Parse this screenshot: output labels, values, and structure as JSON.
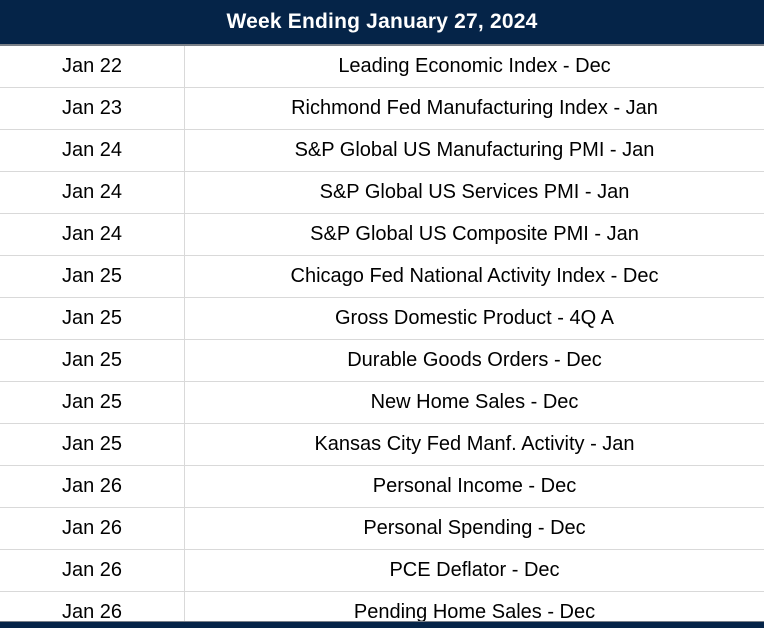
{
  "header": {
    "title": "Week Ending January 27, 2024"
  },
  "table": {
    "rows": [
      {
        "date": "Jan 22",
        "event": "Leading Economic Index - Dec"
      },
      {
        "date": "Jan 23",
        "event": "Richmond Fed Manufacturing Index - Jan"
      },
      {
        "date": "Jan 24",
        "event": "S&P Global US Manufacturing PMI - Jan"
      },
      {
        "date": "Jan 24",
        "event": "S&P Global US Services PMI - Jan"
      },
      {
        "date": "Jan 24",
        "event": "S&P Global US Composite PMI - Jan"
      },
      {
        "date": "Jan 25",
        "event": "Chicago Fed National Activity Index - Dec"
      },
      {
        "date": "Jan 25",
        "event": "Gross Domestic Product - 4Q A"
      },
      {
        "date": "Jan 25",
        "event": "Durable Goods Orders - Dec"
      },
      {
        "date": "Jan 25",
        "event": "New Home Sales - Dec"
      },
      {
        "date": "Jan 25",
        "event": "Kansas City Fed Manf. Activity - Jan"
      },
      {
        "date": "Jan 26",
        "event": "Personal Income - Dec"
      },
      {
        "date": "Jan 26",
        "event": "Personal Spending - Dec"
      },
      {
        "date": "Jan 26",
        "event": "PCE Deflator - Dec"
      },
      {
        "date": "Jan 26",
        "event": "Pending Home Sales - Dec"
      }
    ]
  },
  "colors": {
    "header_bg": "#052448",
    "header_text": "#ffffff",
    "body_text": "#000000",
    "grid_line": "#d9d9d9",
    "header_underline": "#7a8088"
  }
}
